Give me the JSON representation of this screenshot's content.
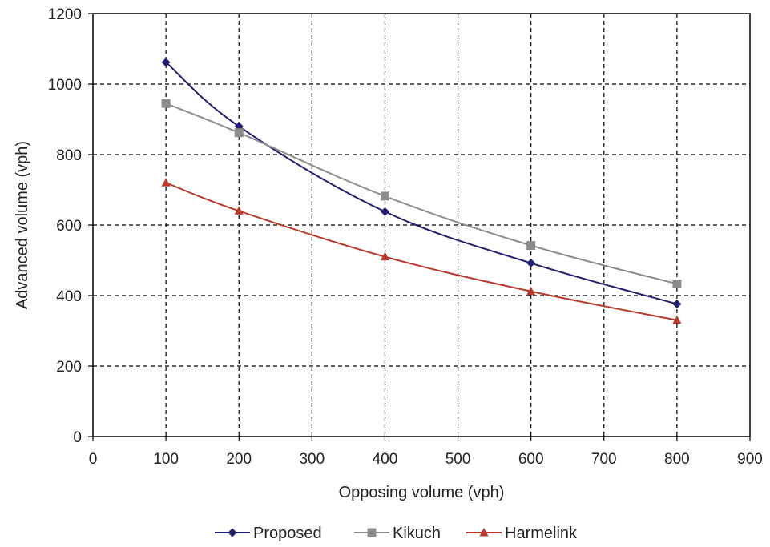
{
  "chart_data": {
    "type": "line",
    "title": "",
    "xlabel": "Opposing volume (vph)",
    "ylabel": "Advanced volume (vph)",
    "xlim": [
      0,
      900
    ],
    "ylim": [
      0,
      1200
    ],
    "xticks": [
      0,
      100,
      200,
      300,
      400,
      500,
      600,
      700,
      800,
      900
    ],
    "yticks": [
      0,
      200,
      400,
      600,
      800,
      1000,
      1200
    ],
    "xtick_labels": [
      "0",
      "100",
      "200",
      "300",
      "400",
      "500",
      "600",
      "700",
      "800",
      "900"
    ],
    "ytick_labels": [
      "0",
      "200",
      "400",
      "600",
      "800",
      "1000",
      "1200"
    ],
    "grid": true,
    "grid_style": "dashed",
    "legend_position": "bottom",
    "x": [
      100,
      200,
      400,
      600,
      800
    ],
    "series": [
      {
        "name": "Proposed",
        "color": "#22206e",
        "marker": "diamond",
        "values": [
          1062,
          880,
          638,
          492,
          376
        ]
      },
      {
        "name": "Kikuch",
        "color": "#8c8c8c",
        "marker": "square",
        "values": [
          945,
          862,
          682,
          542,
          433
        ]
      },
      {
        "name": "Harmelink",
        "color": "#b83a2e",
        "marker": "triangle",
        "values": [
          720,
          640,
          510,
          412,
          330
        ]
      }
    ]
  }
}
